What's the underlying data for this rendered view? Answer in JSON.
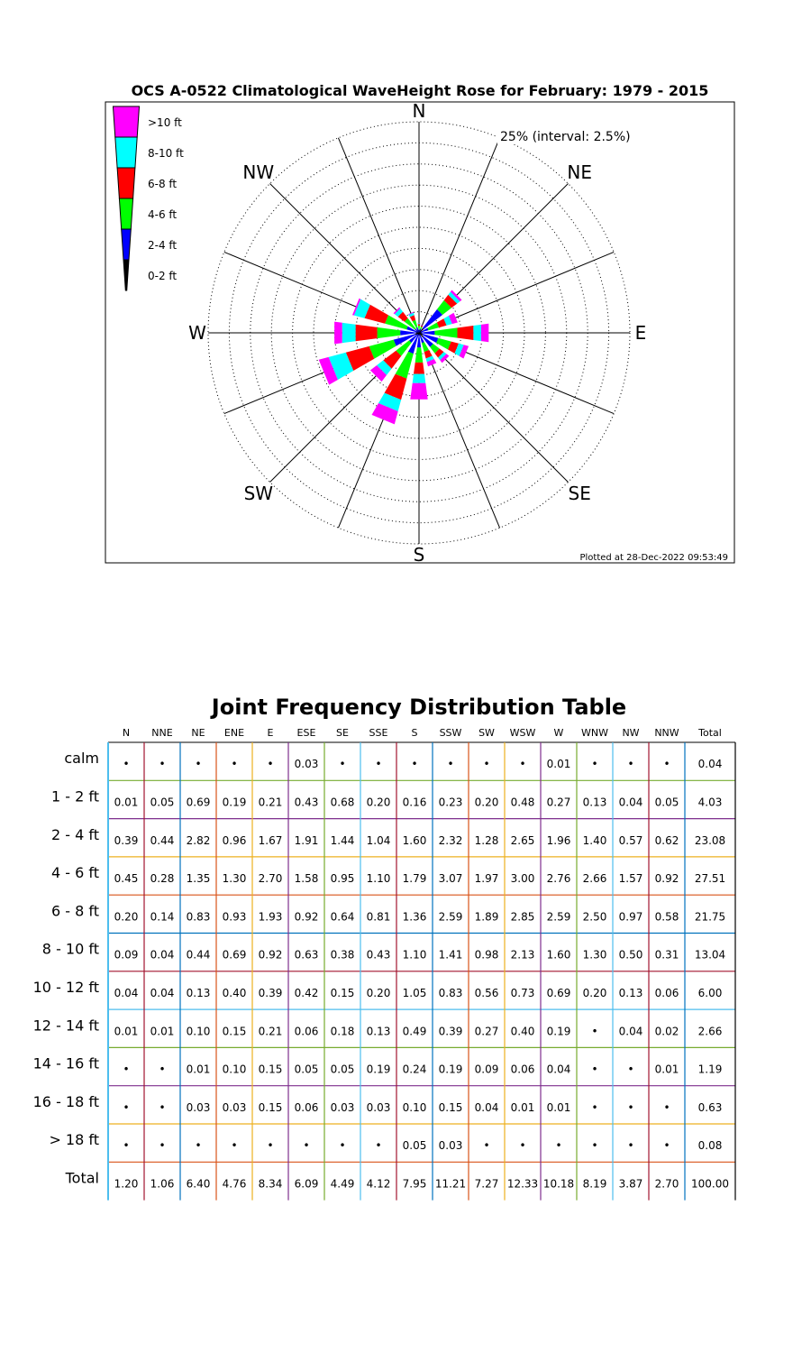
{
  "chart_data": [
    {
      "type": "rose",
      "title": "OCS A-0522 Climatological WaveHeight Rose for February: 1979 - 2015",
      "ring_label": "25% (interval: 2.5%)",
      "rmax_percent": 25,
      "interval_percent": 2.5,
      "compass_labels": [
        "N",
        "NE",
        "E",
        "SE",
        "S",
        "SW",
        "W",
        "NW"
      ],
      "legend": [
        {
          "label": ">10 ft",
          "color": "#ff00ff"
        },
        {
          "label": "8-10 ft",
          "color": "#00ffff"
        },
        {
          "label": "6-8 ft",
          "color": "#ff0000"
        },
        {
          "label": "4-6 ft",
          "color": "#00ff00"
        },
        {
          "label": "2-4 ft",
          "color": "#0000ff"
        },
        {
          "label": "0-2 ft",
          "color": "#000000"
        }
      ],
      "footer": "Plotted at 28-Dec-2022 09:53:49"
    },
    {
      "type": "table",
      "title": "Joint Frequency Distribution Table",
      "columns": [
        "N",
        "NNE",
        "NE",
        "ENE",
        "E",
        "ESE",
        "SE",
        "SSE",
        "S",
        "SSW",
        "SW",
        "WSW",
        "W",
        "WNW",
        "NW",
        "NNW",
        "Total"
      ],
      "rows": [
        {
          "label": "calm",
          "values": [
            "•",
            "•",
            "•",
            "•",
            "•",
            "0.03",
            "•",
            "•",
            "•",
            "•",
            "•",
            "•",
            "0.01",
            "•",
            "•",
            "•",
            "0.04"
          ]
        },
        {
          "label": "1 - 2  ft",
          "values": [
            "0.01",
            "0.05",
            "0.69",
            "0.19",
            "0.21",
            "0.43",
            "0.68",
            "0.20",
            "0.16",
            "0.23",
            "0.20",
            "0.48",
            "0.27",
            "0.13",
            "0.04",
            "0.05",
            "4.03"
          ]
        },
        {
          "label": "2 - 4  ft",
          "values": [
            "0.39",
            "0.44",
            "2.82",
            "0.96",
            "1.67",
            "1.91",
            "1.44",
            "1.04",
            "1.60",
            "2.32",
            "1.28",
            "2.65",
            "1.96",
            "1.40",
            "0.57",
            "0.62",
            "23.08"
          ]
        },
        {
          "label": "4 - 6  ft",
          "values": [
            "0.45",
            "0.28",
            "1.35",
            "1.30",
            "2.70",
            "1.58",
            "0.95",
            "1.10",
            "1.79",
            "3.07",
            "1.97",
            "3.00",
            "2.76",
            "2.66",
            "1.57",
            "0.92",
            "27.51"
          ]
        },
        {
          "label": "6 - 8  ft",
          "values": [
            "0.20",
            "0.14",
            "0.83",
            "0.93",
            "1.93",
            "0.92",
            "0.64",
            "0.81",
            "1.36",
            "2.59",
            "1.89",
            "2.85",
            "2.59",
            "2.50",
            "0.97",
            "0.58",
            "21.75"
          ]
        },
        {
          "label": "8 - 10 ft",
          "values": [
            "0.09",
            "0.04",
            "0.44",
            "0.69",
            "0.92",
            "0.63",
            "0.38",
            "0.43",
            "1.10",
            "1.41",
            "0.98",
            "2.13",
            "1.60",
            "1.30",
            "0.50",
            "0.31",
            "13.04"
          ]
        },
        {
          "label": "10 - 12 ft",
          "values": [
            "0.04",
            "0.04",
            "0.13",
            "0.40",
            "0.39",
            "0.42",
            "0.15",
            "0.20",
            "1.05",
            "0.83",
            "0.56",
            "0.73",
            "0.69",
            "0.20",
            "0.13",
            "0.06",
            "6.00"
          ]
        },
        {
          "label": "12 - 14 ft",
          "values": [
            "0.01",
            "0.01",
            "0.10",
            "0.15",
            "0.21",
            "0.06",
            "0.18",
            "0.13",
            "0.49",
            "0.39",
            "0.27",
            "0.40",
            "0.19",
            "•",
            "0.04",
            "0.02",
            "2.66"
          ]
        },
        {
          "label": "14 - 16 ft",
          "values": [
            "•",
            "•",
            "0.01",
            "0.10",
            "0.15",
            "0.05",
            "0.05",
            "0.19",
            "0.24",
            "0.19",
            "0.09",
            "0.06",
            "0.04",
            "•",
            "•",
            "0.01",
            "1.19"
          ]
        },
        {
          "label": "16 - 18 ft",
          "values": [
            "•",
            "•",
            "0.03",
            "0.03",
            "0.15",
            "0.06",
            "0.03",
            "0.03",
            "0.10",
            "0.15",
            "0.04",
            "0.01",
            "0.01",
            "•",
            "•",
            "•",
            "0.63"
          ]
        },
        {
          "label": ">  18   ft",
          "values": [
            "•",
            "•",
            "•",
            "•",
            "•",
            "•",
            "•",
            "•",
            "0.05",
            "0.03",
            "•",
            "•",
            "•",
            "•",
            "•",
            "•",
            "0.08"
          ]
        },
        {
          "label": "Total",
          "values": [
            "1.20",
            "1.06",
            "6.40",
            "4.76",
            "8.34",
            "6.09",
            "4.49",
            "4.12",
            "7.95",
            "11.21",
            "7.27",
            "12.33",
            "10.18",
            "8.19",
            "3.87",
            "2.70",
            "100.00"
          ]
        }
      ]
    }
  ]
}
